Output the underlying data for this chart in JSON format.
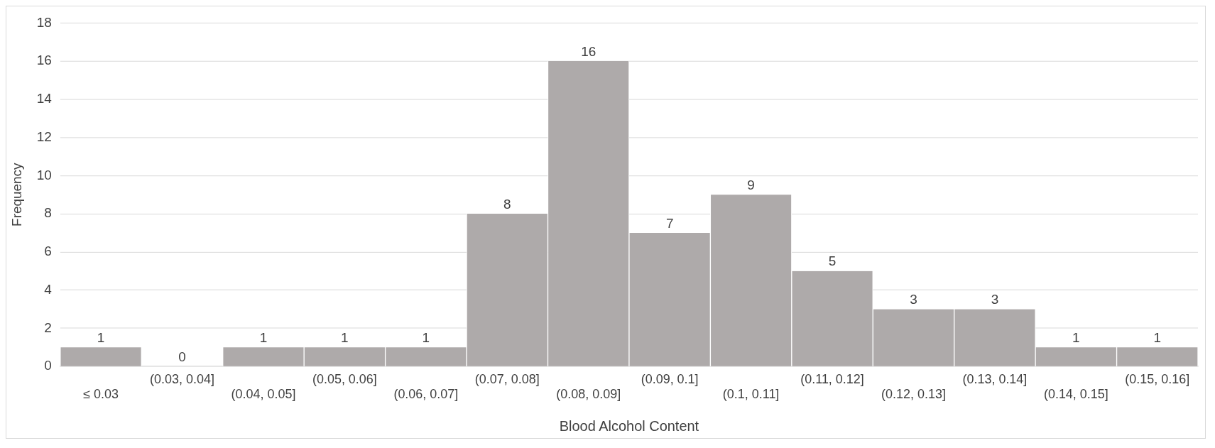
{
  "chart_data": {
    "type": "bar",
    "xlabel": "Blood Alcohol Content",
    "ylabel": "Frequency",
    "categories": [
      "≤ 0.03",
      "(0.03, 0.04]",
      "(0.04, 0.05]",
      "(0.05, 0.06]",
      "(0.06, 0.07]",
      "(0.07, 0.08]",
      "(0.08, 0.09]",
      "(0.09, 0.1]",
      "(0.1, 0.11]",
      "(0.11, 0.12]",
      "(0.12, 0.13]",
      "(0.13, 0.14]",
      "(0.14, 0.15]",
      "(0.15, 0.16]"
    ],
    "values": [
      1,
      0,
      1,
      1,
      1,
      8,
      16,
      7,
      9,
      5,
      3,
      3,
      1,
      1
    ],
    "color": "#aeaaaa",
    "ylim": [
      0,
      18
    ],
    "yticks": [
      0,
      2,
      4,
      6,
      8,
      10,
      12,
      14,
      16,
      18
    ],
    "grid": "y",
    "data_labels": true,
    "legend": false
  }
}
